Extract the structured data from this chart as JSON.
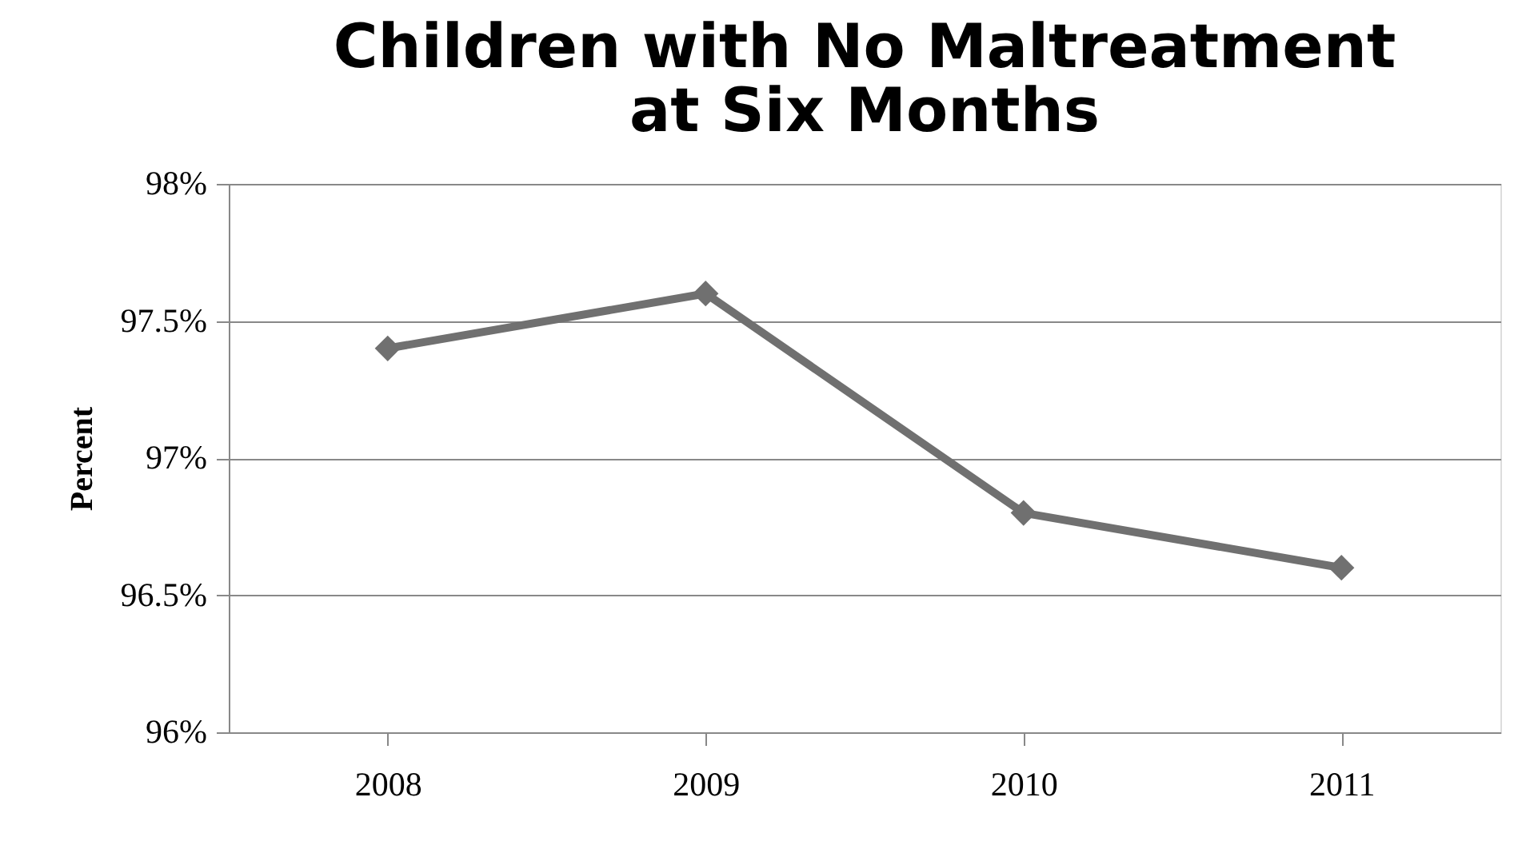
{
  "chart_data": {
    "type": "line",
    "title": "Children with No Maltreatment\nat Six Months",
    "ylabel": "Percent",
    "categories": [
      "2008",
      "2009",
      "2010",
      "2011"
    ],
    "series": [
      {
        "color": "#707070",
        "values": [
          97.4,
          97.6,
          96.8,
          96.6
        ]
      }
    ],
    "ylim": [
      96,
      98
    ],
    "yticks": [
      {
        "value": 96,
        "label": "96%"
      },
      {
        "value": 96.5,
        "label": "96.5%"
      },
      {
        "value": 97,
        "label": "97%"
      },
      {
        "value": 97.5,
        "label": "97.5%"
      },
      {
        "value": 98,
        "label": "98%"
      }
    ],
    "grid": "y",
    "legend": false,
    "marker": "diamond",
    "line_style": "solid"
  }
}
